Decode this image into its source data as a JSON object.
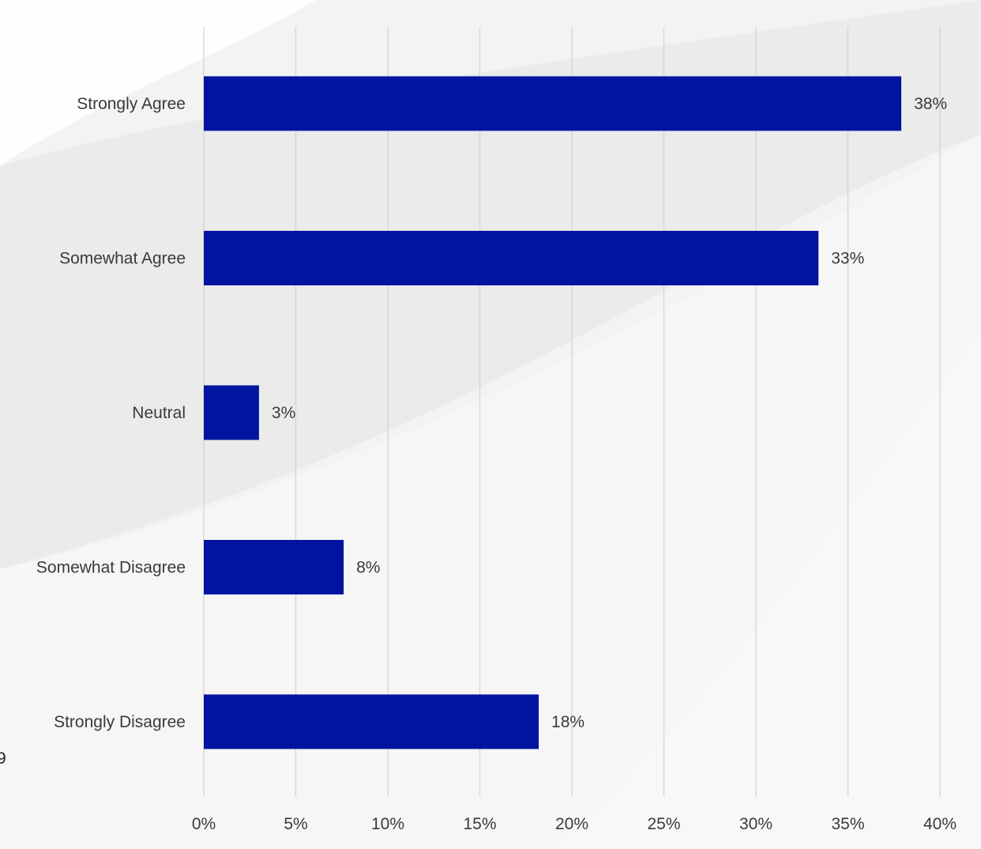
{
  "chart_data": {
    "type": "bar",
    "orientation": "horizontal",
    "categories": [
      "Strongly Agree",
      "Somewhat Agree",
      "Neutral",
      "Somewhat Disagree",
      "Strongly Disagree"
    ],
    "values": [
      37.9,
      33.4,
      3.0,
      7.6,
      18.2
    ],
    "value_labels": [
      "38%",
      "33%",
      "3%",
      "8%",
      "18%"
    ],
    "xlim": [
      0,
      40
    ],
    "x_ticks": [
      0,
      5,
      10,
      15,
      20,
      25,
      30,
      35,
      40
    ],
    "x_tick_labels": [
      "0%",
      "5%",
      "10%",
      "15%",
      "20%",
      "25%",
      "30%",
      "35%",
      "40%"
    ],
    "grid": "vertical",
    "legend": "none",
    "title": "",
    "xlabel": "",
    "ylabel": "",
    "bar_color": "#0014a0",
    "grid_color": "#d6d6d6"
  },
  "stray_text": "9"
}
